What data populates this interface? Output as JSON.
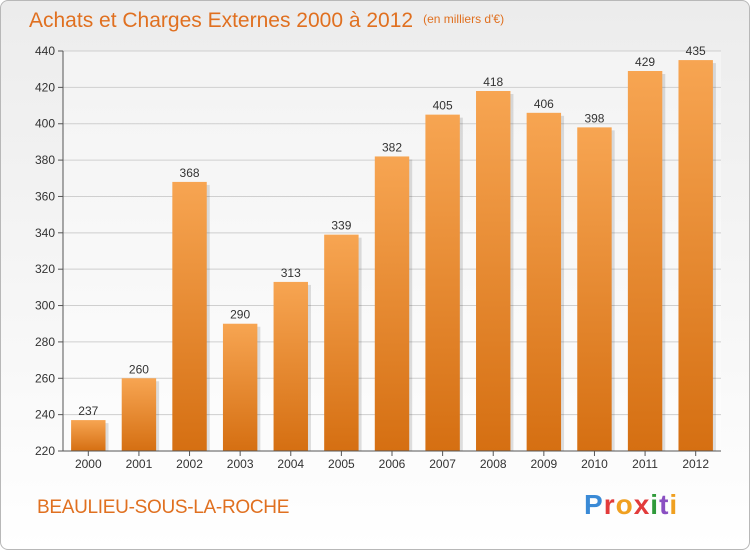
{
  "title": "Achats et Charges Externes 2000 à 2012",
  "unit": "(en milliers d'€)",
  "commune": "BEAULIEU-SOUS-LA-ROCHE",
  "logo": {
    "p1": "P",
    "p2": "r",
    "p3": "o",
    "p4": "x",
    "p5": "i",
    "p6": "t",
    "p7": "i"
  },
  "colors": {
    "bar_light": "#f7a552",
    "bar_dark": "#d56f12",
    "accent": "#e07020"
  },
  "chart_data": {
    "type": "bar",
    "categories": [
      "2000",
      "2001",
      "2002",
      "2003",
      "2004",
      "2005",
      "2006",
      "2007",
      "2008",
      "2009",
      "2010",
      "2011",
      "2012"
    ],
    "values": [
      237,
      260,
      368,
      290,
      313,
      339,
      382,
      405,
      418,
      406,
      398,
      429,
      435
    ],
    "ylim": [
      220,
      440
    ],
    "yticks": [
      220,
      240,
      260,
      280,
      300,
      320,
      340,
      360,
      380,
      400,
      420,
      440
    ],
    "grid": true,
    "data_labels": true
  }
}
